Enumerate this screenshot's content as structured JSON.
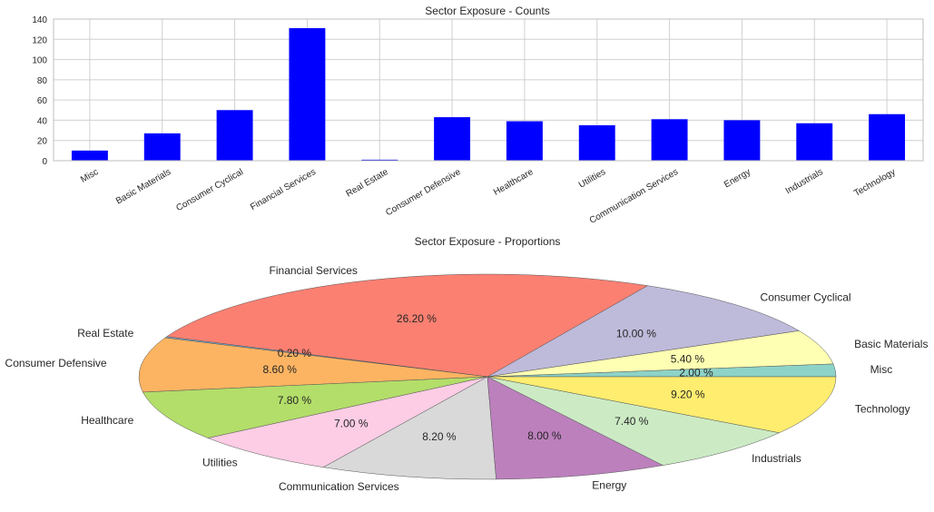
{
  "chart_data": [
    {
      "type": "bar",
      "title": "Sector Exposure - Counts",
      "xlabel": "",
      "ylabel": "",
      "ylim": [
        0,
        140
      ],
      "yticks": [
        0,
        20,
        40,
        60,
        80,
        100,
        120,
        140
      ],
      "grid": true,
      "color": "#0000ff",
      "categories": [
        "Misc",
        "Basic Materials",
        "Consumer Cyclical",
        "Financial Services",
        "Real Estate",
        "Consumer Defensive",
        "Healthcare",
        "Utilities",
        "Communication Services",
        "Energy",
        "Industrials",
        "Technology"
      ],
      "values": [
        10,
        27,
        50,
        131,
        1,
        43,
        39,
        35,
        41,
        40,
        37,
        46
      ]
    },
    {
      "type": "pie",
      "title": "Sector Exposure - Proportions",
      "slices": [
        {
          "label": "Misc",
          "value": 2.0,
          "pct_label": "2.00 %",
          "color": "#8dd3c7"
        },
        {
          "label": "Basic Materials",
          "value": 5.4,
          "pct_label": "5.40 %",
          "color": "#ffffb3"
        },
        {
          "label": "Consumer Cyclical",
          "value": 10.0,
          "pct_label": "10.00 %",
          "color": "#bebada"
        },
        {
          "label": "Financial Services",
          "value": 26.2,
          "pct_label": "26.20 %",
          "color": "#fb8072"
        },
        {
          "label": "Real Estate",
          "value": 0.2,
          "pct_label": "0.20 %",
          "color": "#80b1d3"
        },
        {
          "label": "Consumer Defensive",
          "value": 8.6,
          "pct_label": "8.60 %",
          "color": "#fdb462"
        },
        {
          "label": "Healthcare",
          "value": 7.8,
          "pct_label": "7.80 %",
          "color": "#b3de69"
        },
        {
          "label": "Utilities",
          "value": 7.0,
          "pct_label": "7.00 %",
          "color": "#fccde5"
        },
        {
          "label": "Communication Services",
          "value": 8.2,
          "pct_label": "8.20 %",
          "color": "#d9d9d9"
        },
        {
          "label": "Energy",
          "value": 8.0,
          "pct_label": "8.00 %",
          "color": "#bc80bd"
        },
        {
          "label": "Industrials",
          "value": 7.4,
          "pct_label": "7.40 %",
          "color": "#ccebc5"
        },
        {
          "label": "Technology",
          "value": 9.2,
          "pct_label": "9.20 %",
          "color": "#ffed6f"
        }
      ]
    }
  ]
}
